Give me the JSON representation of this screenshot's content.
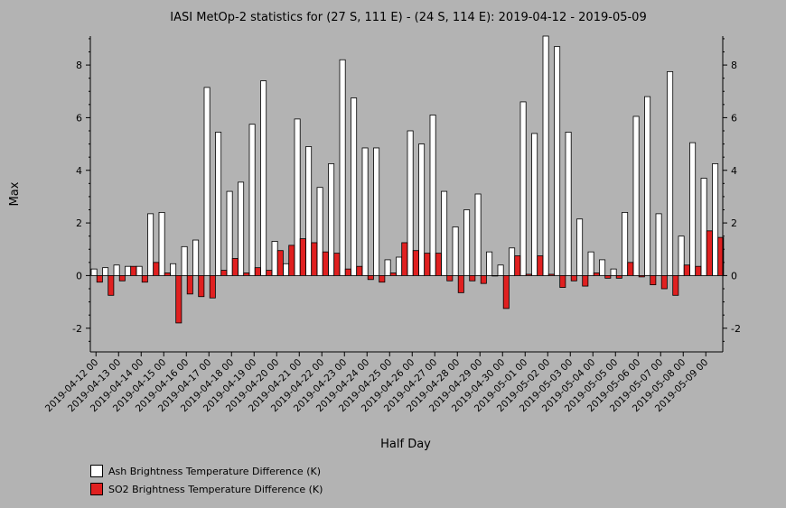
{
  "chart_data": {
    "type": "bar",
    "title": "IASI MetOp-2 statistics for (27 S, 111 E) - (24 S, 114 E): 2019-04-12 - 2019-05-09",
    "xlabel": "Half Day",
    "ylabel": "Max",
    "ylim": [
      -2.9,
      9.1
    ],
    "yticks": [
      -2,
      0,
      2,
      4,
      6,
      8
    ],
    "tick_labels": [
      "2019-04-12 00",
      "2019-04-13 00",
      "2019-04-14 00",
      "2019-04-15 00",
      "2019-04-16 00",
      "2019-04-17 00",
      "2019-04-18 00",
      "2019-04-19 00",
      "2019-04-20 00",
      "2019-04-21 00",
      "2019-04-22 00",
      "2019-04-23 00",
      "2019-04-24 00",
      "2019-04-25 00",
      "2019-04-26 00",
      "2019-04-27 00",
      "2019-04-28 00",
      "2019-04-29 00",
      "2019-04-30 00",
      "2019-05-01 00",
      "2019-05-02 00",
      "2019-05-03 00",
      "2019-05-04 00",
      "2019-05-05 00",
      "2019-05-06 00",
      "2019-05-07 00",
      "2019-05-08 00",
      "2019-05-09 00"
    ],
    "grid": false,
    "legend_position": "bottom-left",
    "series": [
      {
        "name": "Ash Brightness Temperature Difference (K)",
        "color": "#ffffff",
        "values": [
          0.25,
          0.3,
          0.4,
          0.35,
          0.35,
          2.35,
          2.4,
          0.45,
          1.1,
          1.35,
          7.15,
          5.45,
          3.2,
          3.55,
          5.75,
          7.4,
          1.3,
          0.45,
          5.95,
          4.9,
          3.35,
          4.25,
          8.2,
          6.75,
          4.85,
          4.85,
          0.6,
          0.7,
          5.5,
          5.0,
          6.1,
          3.2,
          1.85,
          2.5,
          3.1,
          0.9,
          0.4,
          1.05,
          6.6,
          5.4,
          9.1,
          8.7,
          5.45,
          2.15,
          0.9,
          0.6,
          0.25,
          2.4,
          6.05,
          6.8,
          2.35,
          7.75,
          1.5,
          5.05,
          3.7,
          4.25
        ]
      },
      {
        "name": "SO2 Brightness Temperature Difference (K)",
        "color": "#e02020",
        "values": [
          -0.25,
          -0.75,
          -0.2,
          0.35,
          -0.25,
          0.5,
          0.1,
          -1.8,
          -0.7,
          -0.8,
          -0.85,
          0.2,
          0.65,
          0.1,
          0.3,
          0.2,
          0.95,
          1.15,
          1.4,
          1.25,
          0.9,
          0.85,
          0.25,
          0.35,
          -0.15,
          -0.25,
          0.1,
          1.25,
          0.95,
          0.85,
          0.85,
          -0.2,
          -0.65,
          -0.2,
          -0.3,
          0.0,
          -1.25,
          0.75,
          0.05,
          0.75,
          0.05,
          -0.45,
          -0.2,
          -0.4,
          0.1,
          -0.1,
          -0.1,
          0.5,
          -0.05,
          -0.35,
          -0.5,
          -0.75,
          0.4,
          0.35,
          1.7,
          1.45
        ]
      }
    ]
  }
}
